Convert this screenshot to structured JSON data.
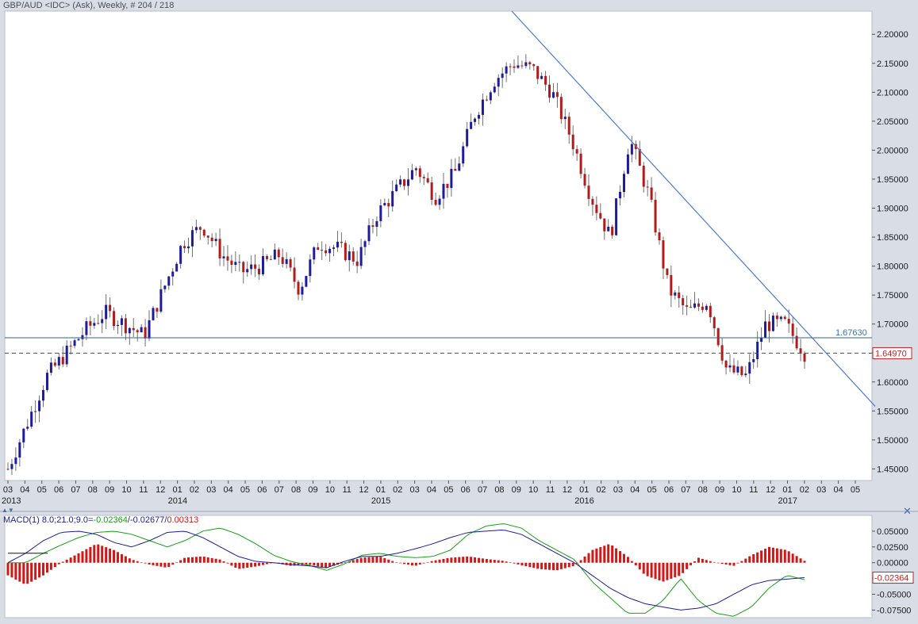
{
  "title": "GBP/AUD <IDC> (Ask), Weekly, # 204 / 218",
  "macd_label": {
    "name": "MACD(1) 8.0;21.0;9.0=",
    "macd_value": "-0.02364",
    "separator1": "/",
    "signal_value": "-0.02677",
    "separator2": "/",
    "hist_value": "0.00313"
  },
  "colors": {
    "up_candle": "#1c1c9c",
    "down_candle": "#b01c1c",
    "trendline": "#4a7ad0",
    "macd_line": "#1c1c9c",
    "signal_line": "#18a018",
    "histogram": "#d01818",
    "support_line": "#2f5f8f",
    "current_price_tag": "#c82020"
  },
  "icons": {
    "close": "close-x-icon",
    "collapse": "collapse-arrows-icon"
  },
  "chart_data": [
    {
      "type": "candlestick",
      "title": "GBP/AUD <IDC> (Ask), Weekly, # 204 / 218",
      "ylim": [
        1.43,
        2.24
      ],
      "y_ticks": [
        "2.20000",
        "2.15000",
        "2.10000",
        "2.05000",
        "2.00000",
        "1.95000",
        "1.90000",
        "1.85000",
        "1.80000",
        "1.75000",
        "1.70000",
        "1.65000",
        "1.60000",
        "1.55000",
        "1.50000",
        "1.45000"
      ],
      "x_tick_labels": [
        "03",
        "04",
        "05",
        "06",
        "07",
        "08",
        "09",
        "10",
        "11",
        "12",
        "01",
        "02",
        "03",
        "04",
        "05",
        "06",
        "07",
        "08",
        "09",
        "10",
        "11",
        "12",
        "01",
        "02",
        "03",
        "04",
        "05",
        "06",
        "07",
        "08",
        "09",
        "10",
        "11",
        "12",
        "01",
        "02",
        "03",
        "04",
        "05",
        "06",
        "07",
        "08",
        "09",
        "10",
        "11",
        "12",
        "01",
        "02",
        "03",
        "04",
        "05"
      ],
      "year_labels": [
        "2013",
        "2014",
        "2015",
        "2016",
        "2017"
      ],
      "horizontal_line": {
        "value": 1.6763,
        "label": "1.67630"
      },
      "current_price": {
        "value": 1.6497,
        "label": "1.64970"
      },
      "trendline": {
        "from": [
          "2015-08",
          2.24
        ],
        "to": [
          "2017-05",
          1.56
        ]
      },
      "price_path": [
        [
          1.44,
          1.45
        ],
        [
          1.51,
          1.53
        ],
        [
          1.56,
          1.61
        ],
        [
          1.67,
          1.65
        ],
        [
          1.66,
          1.69
        ],
        [
          1.7,
          1.72
        ],
        [
          1.72,
          1.7
        ],
        [
          1.69,
          1.68
        ],
        [
          1.71,
          1.76
        ],
        [
          1.82,
          1.84
        ],
        [
          1.86,
          1.87
        ],
        [
          1.83,
          1.82
        ],
        [
          1.8,
          1.79
        ],
        [
          1.81,
          1.8
        ],
        [
          1.81,
          1.82
        ],
        [
          1.8,
          1.76
        ],
        [
          1.81,
          1.84
        ],
        [
          1.85,
          1.83
        ],
        [
          1.8,
          1.81
        ],
        [
          1.87,
          1.89
        ],
        [
          1.84,
          1.93
        ],
        [
          1.96,
          1.97
        ],
        [
          1.95,
          1.92
        ],
        [
          1.91,
          1.96
        ],
        [
          2.0,
          2.06
        ],
        [
          2.1,
          2.12
        ],
        [
          2.18,
          2.15
        ],
        [
          2.14,
          2.14
        ],
        [
          2.13,
          2.1
        ],
        [
          2.07,
          2.02
        ],
        [
          2.02,
          1.92
        ],
        [
          1.88,
          1.85
        ],
        [
          1.94,
          2.02
        ],
        [
          1.96,
          1.92
        ],
        [
          1.82,
          1.76
        ],
        [
          1.73,
          1.72
        ],
        [
          1.76,
          1.74
        ],
        [
          1.69,
          1.62
        ],
        [
          1.6,
          1.61
        ],
        [
          1.66,
          1.7
        ],
        [
          1.71,
          1.7
        ],
        [
          1.64,
          1.65
        ]
      ]
    },
    {
      "type": "line",
      "title": "MACD(1) 8.0;21.0;9.0",
      "ylim": [
        -0.087,
        0.075
      ],
      "y_ticks": [
        "0.05000",
        "0.02500",
        "0.00000",
        "-0.02500",
        "-0.05000",
        "-0.07500"
      ],
      "current_value": {
        "value": -0.02364,
        "label": "-0.02364"
      },
      "series": [
        {
          "name": "MACD",
          "values": [
            0.0,
            0.015,
            0.035,
            0.048,
            0.05,
            0.045,
            0.032,
            0.025,
            0.035,
            0.048,
            0.05,
            0.04,
            0.025,
            0.01,
            0.002,
            0.0,
            -0.003,
            -0.005,
            -0.008,
            0.002,
            0.01,
            0.01,
            0.015,
            0.022,
            0.03,
            0.04,
            0.048,
            0.05,
            0.052,
            0.045,
            0.03,
            0.015,
            0.0,
            -0.02,
            -0.04,
            -0.055,
            -0.065,
            -0.07,
            -0.075,
            -0.072,
            -0.065,
            -0.05,
            -0.035,
            -0.028,
            -0.026,
            -0.0236
          ]
        },
        {
          "name": "Signal",
          "values": [
            0.0,
            0.0,
            0.015,
            0.028,
            0.04,
            0.048,
            0.05,
            0.045,
            0.035,
            0.025,
            0.035,
            0.05,
            0.055,
            0.045,
            0.03,
            0.012,
            0.002,
            -0.004,
            -0.012,
            -0.002,
            0.012,
            0.015,
            0.01,
            0.008,
            0.01,
            0.02,
            0.045,
            0.058,
            0.062,
            0.055,
            0.035,
            0.02,
            0.005,
            -0.03,
            -0.055,
            -0.08,
            -0.08,
            -0.06,
            -0.025,
            -0.06,
            -0.08,
            -0.085,
            -0.07,
            -0.04,
            -0.02,
            -0.0268
          ]
        },
        {
          "name": "Histogram",
          "values": [
            -0.02,
            -0.035,
            -0.02,
            0.0,
            0.015,
            0.03,
            0.02,
            0.005,
            -0.003,
            -0.008,
            0.008,
            0.01,
            0.005,
            -0.01,
            -0.006,
            0.0,
            -0.005,
            -0.003,
            -0.008,
            0.0,
            0.008,
            0.01,
            0.0,
            -0.005,
            0.003,
            0.008,
            0.01,
            0.006,
            0.003,
            -0.004,
            -0.01,
            -0.012,
            -0.005,
            0.02,
            0.03,
            0.01,
            -0.02,
            -0.03,
            -0.02,
            0.008,
            0.0,
            -0.005,
            0.012,
            0.025,
            0.02,
            0.0031
          ]
        }
      ]
    }
  ]
}
